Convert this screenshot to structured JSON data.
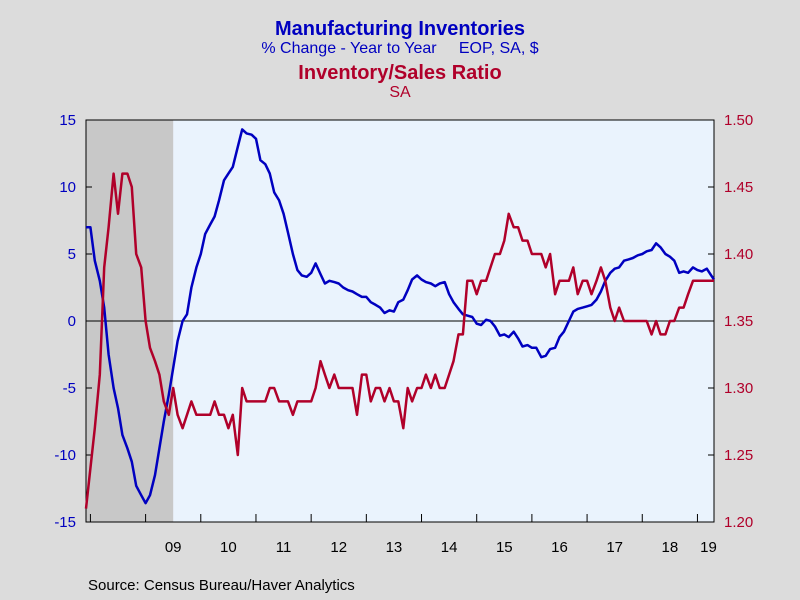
{
  "titles": {
    "line1": "Manufacturing Inventories",
    "line2": "% Change - Year to Year     EOP, SA, $",
    "line3": "Inventory/Sales Ratio",
    "line4": "SA"
  },
  "source": "Source:  Census Bureau/Haver Analytics",
  "colors": {
    "blue": "#0000c0",
    "red": "#b0002a",
    "plot_bg": "#eaf3fd",
    "recession": "#c8c8c8",
    "frame_bg": "#dcdcdc"
  },
  "chart_data": {
    "type": "line",
    "recession": {
      "start": 2007.92,
      "end": 2009.5
    },
    "x_range": [
      2007.92,
      2019.3
    ],
    "x_ticks": [
      {
        "label": "09",
        "x": 2009.5
      },
      {
        "label": "10",
        "x": 2010.5
      },
      {
        "label": "11",
        "x": 2011.5
      },
      {
        "label": "12",
        "x": 2012.5
      },
      {
        "label": "13",
        "x": 2013.5
      },
      {
        "label": "14",
        "x": 2014.5
      },
      {
        "label": "15",
        "x": 2015.5
      },
      {
        "label": "16",
        "x": 2016.5
      },
      {
        "label": "17",
        "x": 2017.5
      },
      {
        "label": "18",
        "x": 2018.5
      },
      {
        "label": "19",
        "x": 2019.2
      }
    ],
    "y_left": {
      "ylim": [
        -15,
        15
      ],
      "ticks": [
        15,
        10,
        5,
        0,
        -5,
        -10,
        -15
      ]
    },
    "y_right": {
      "ylim": [
        1.2,
        1.5
      ],
      "ticks": [
        "1.50",
        "1.45",
        "1.40",
        "1.35",
        "1.30",
        "1.25",
        "1.20"
      ]
    },
    "series": [
      {
        "name": "Manufacturing Inventories",
        "axis": "left",
        "points": [
          [
            2007.92,
            7.0
          ],
          [
            2008.0,
            7.0
          ],
          [
            2008.08,
            4.5
          ],
          [
            2008.17,
            3.0
          ],
          [
            2008.25,
            1.0
          ],
          [
            2008.33,
            -2.5
          ],
          [
            2008.42,
            -5.0
          ],
          [
            2008.5,
            -6.5
          ],
          [
            2008.58,
            -8.5
          ],
          [
            2008.67,
            -9.5
          ],
          [
            2008.75,
            -10.5
          ],
          [
            2008.83,
            -12.3
          ],
          [
            2008.92,
            -13.0
          ],
          [
            2009.0,
            -13.6
          ],
          [
            2009.08,
            -13.0
          ],
          [
            2009.17,
            -11.5
          ],
          [
            2009.25,
            -9.5
          ],
          [
            2009.33,
            -7.5
          ],
          [
            2009.42,
            -5.5
          ],
          [
            2009.5,
            -3.5
          ],
          [
            2009.58,
            -1.5
          ],
          [
            2009.67,
            0.0
          ],
          [
            2009.75,
            0.5
          ],
          [
            2009.83,
            2.5
          ],
          [
            2009.92,
            4.0
          ],
          [
            2010.0,
            5.0
          ],
          [
            2010.08,
            6.5
          ],
          [
            2010.17,
            7.2
          ],
          [
            2010.25,
            7.8
          ],
          [
            2010.33,
            9.0
          ],
          [
            2010.42,
            10.5
          ],
          [
            2010.5,
            11.0
          ],
          [
            2010.58,
            11.5
          ],
          [
            2010.67,
            13.0
          ],
          [
            2010.75,
            14.3
          ],
          [
            2010.83,
            14.0
          ],
          [
            2010.92,
            13.9
          ],
          [
            2011.0,
            13.6
          ],
          [
            2011.08,
            12.0
          ],
          [
            2011.17,
            11.7
          ],
          [
            2011.25,
            11.0
          ],
          [
            2011.33,
            9.6
          ],
          [
            2011.42,
            9.0
          ],
          [
            2011.5,
            8.0
          ],
          [
            2011.58,
            6.6
          ],
          [
            2011.67,
            5.0
          ],
          [
            2011.75,
            3.8
          ],
          [
            2011.83,
            3.4
          ],
          [
            2011.92,
            3.3
          ],
          [
            2012.0,
            3.6
          ],
          [
            2012.08,
            4.3
          ],
          [
            2012.17,
            3.5
          ],
          [
            2012.25,
            2.8
          ],
          [
            2012.33,
            3.0
          ],
          [
            2012.42,
            2.9
          ],
          [
            2012.5,
            2.8
          ],
          [
            2012.58,
            2.5
          ],
          [
            2012.67,
            2.3
          ],
          [
            2012.75,
            2.2
          ],
          [
            2012.83,
            2.0
          ],
          [
            2012.92,
            1.8
          ],
          [
            2013.0,
            1.8
          ],
          [
            2013.08,
            1.4
          ],
          [
            2013.17,
            1.2
          ],
          [
            2013.25,
            1.0
          ],
          [
            2013.33,
            0.6
          ],
          [
            2013.42,
            0.8
          ],
          [
            2013.5,
            0.7
          ],
          [
            2013.58,
            1.4
          ],
          [
            2013.67,
            1.6
          ],
          [
            2013.75,
            2.3
          ],
          [
            2013.83,
            3.1
          ],
          [
            2013.92,
            3.4
          ],
          [
            2014.0,
            3.1
          ],
          [
            2014.08,
            2.9
          ],
          [
            2014.17,
            2.8
          ],
          [
            2014.25,
            2.6
          ],
          [
            2014.33,
            2.8
          ],
          [
            2014.42,
            2.9
          ],
          [
            2014.5,
            2.0
          ],
          [
            2014.58,
            1.4
          ],
          [
            2014.67,
            0.9
          ],
          [
            2014.75,
            0.5
          ],
          [
            2014.83,
            0.4
          ],
          [
            2014.92,
            0.3
          ],
          [
            2015.0,
            -0.2
          ],
          [
            2015.08,
            -0.3
          ],
          [
            2015.17,
            0.1
          ],
          [
            2015.25,
            0.0
          ],
          [
            2015.33,
            -0.4
          ],
          [
            2015.42,
            -1.1
          ],
          [
            2015.5,
            -1.0
          ],
          [
            2015.58,
            -1.2
          ],
          [
            2015.67,
            -0.8
          ],
          [
            2015.75,
            -1.3
          ],
          [
            2015.83,
            -1.9
          ],
          [
            2015.92,
            -1.8
          ],
          [
            2016.0,
            -2.0
          ],
          [
            2016.08,
            -2.0
          ],
          [
            2016.17,
            -2.7
          ],
          [
            2016.25,
            -2.6
          ],
          [
            2016.33,
            -2.1
          ],
          [
            2016.42,
            -2.0
          ],
          [
            2016.5,
            -1.2
          ],
          [
            2016.58,
            -0.8
          ],
          [
            2016.67,
            0.0
          ],
          [
            2016.75,
            0.7
          ],
          [
            2016.83,
            0.9
          ],
          [
            2016.92,
            1.0
          ],
          [
            2017.0,
            1.1
          ],
          [
            2017.08,
            1.2
          ],
          [
            2017.17,
            1.6
          ],
          [
            2017.25,
            2.2
          ],
          [
            2017.33,
            3.0
          ],
          [
            2017.42,
            3.6
          ],
          [
            2017.5,
            3.9
          ],
          [
            2017.58,
            4.0
          ],
          [
            2017.67,
            4.5
          ],
          [
            2017.75,
            4.6
          ],
          [
            2017.83,
            4.7
          ],
          [
            2017.92,
            4.9
          ],
          [
            2018.0,
            5.0
          ],
          [
            2018.08,
            5.2
          ],
          [
            2018.17,
            5.3
          ],
          [
            2018.25,
            5.8
          ],
          [
            2018.33,
            5.5
          ],
          [
            2018.42,
            5.0
          ],
          [
            2018.5,
            4.8
          ],
          [
            2018.58,
            4.5
          ],
          [
            2018.67,
            3.6
          ],
          [
            2018.75,
            3.7
          ],
          [
            2018.83,
            3.6
          ],
          [
            2018.92,
            4.0
          ],
          [
            2019.0,
            3.8
          ],
          [
            2019.08,
            3.7
          ],
          [
            2019.17,
            3.9
          ],
          [
            2019.25,
            3.4
          ],
          [
            2019.3,
            3.1
          ]
        ]
      },
      {
        "name": "Inventory/Sales Ratio",
        "axis": "right",
        "points": [
          [
            2007.92,
            1.21
          ],
          [
            2008.0,
            1.24
          ],
          [
            2008.08,
            1.27
          ],
          [
            2008.17,
            1.31
          ],
          [
            2008.25,
            1.39
          ],
          [
            2008.33,
            1.42
          ],
          [
            2008.42,
            1.46
          ],
          [
            2008.5,
            1.43
          ],
          [
            2008.58,
            1.46
          ],
          [
            2008.67,
            1.46
          ],
          [
            2008.75,
            1.45
          ],
          [
            2008.83,
            1.4
          ],
          [
            2008.92,
            1.39
          ],
          [
            2009.0,
            1.35
          ],
          [
            2009.08,
            1.33
          ],
          [
            2009.17,
            1.32
          ],
          [
            2009.25,
            1.31
          ],
          [
            2009.33,
            1.29
          ],
          [
            2009.42,
            1.28
          ],
          [
            2009.5,
            1.3
          ],
          [
            2009.58,
            1.28
          ],
          [
            2009.67,
            1.27
          ],
          [
            2009.75,
            1.28
          ],
          [
            2009.83,
            1.29
          ],
          [
            2009.92,
            1.28
          ],
          [
            2010.0,
            1.28
          ],
          [
            2010.08,
            1.28
          ],
          [
            2010.17,
            1.28
          ],
          [
            2010.25,
            1.29
          ],
          [
            2010.33,
            1.28
          ],
          [
            2010.42,
            1.28
          ],
          [
            2010.5,
            1.27
          ],
          [
            2010.58,
            1.28
          ],
          [
            2010.67,
            1.25
          ],
          [
            2010.75,
            1.3
          ],
          [
            2010.83,
            1.29
          ],
          [
            2010.92,
            1.29
          ],
          [
            2011.0,
            1.29
          ],
          [
            2011.08,
            1.29
          ],
          [
            2011.17,
            1.29
          ],
          [
            2011.25,
            1.3
          ],
          [
            2011.33,
            1.3
          ],
          [
            2011.42,
            1.29
          ],
          [
            2011.5,
            1.29
          ],
          [
            2011.58,
            1.29
          ],
          [
            2011.67,
            1.28
          ],
          [
            2011.75,
            1.29
          ],
          [
            2011.83,
            1.29
          ],
          [
            2011.92,
            1.29
          ],
          [
            2012.0,
            1.29
          ],
          [
            2012.08,
            1.3
          ],
          [
            2012.17,
            1.32
          ],
          [
            2012.25,
            1.31
          ],
          [
            2012.33,
            1.3
          ],
          [
            2012.42,
            1.31
          ],
          [
            2012.5,
            1.3
          ],
          [
            2012.58,
            1.3
          ],
          [
            2012.67,
            1.3
          ],
          [
            2012.75,
            1.3
          ],
          [
            2012.83,
            1.28
          ],
          [
            2012.92,
            1.31
          ],
          [
            2013.0,
            1.31
          ],
          [
            2013.08,
            1.29
          ],
          [
            2013.17,
            1.3
          ],
          [
            2013.25,
            1.3
          ],
          [
            2013.33,
            1.29
          ],
          [
            2013.42,
            1.3
          ],
          [
            2013.5,
            1.29
          ],
          [
            2013.58,
            1.29
          ],
          [
            2013.67,
            1.27
          ],
          [
            2013.75,
            1.3
          ],
          [
            2013.83,
            1.29
          ],
          [
            2013.92,
            1.3
          ],
          [
            2014.0,
            1.3
          ],
          [
            2014.08,
            1.31
          ],
          [
            2014.17,
            1.3
          ],
          [
            2014.25,
            1.31
          ],
          [
            2014.33,
            1.3
          ],
          [
            2014.42,
            1.3
          ],
          [
            2014.5,
            1.31
          ],
          [
            2014.58,
            1.32
          ],
          [
            2014.67,
            1.34
          ],
          [
            2014.75,
            1.34
          ],
          [
            2014.83,
            1.38
          ],
          [
            2014.92,
            1.38
          ],
          [
            2015.0,
            1.37
          ],
          [
            2015.08,
            1.38
          ],
          [
            2015.17,
            1.38
          ],
          [
            2015.25,
            1.39
          ],
          [
            2015.33,
            1.4
          ],
          [
            2015.42,
            1.4
          ],
          [
            2015.5,
            1.41
          ],
          [
            2015.58,
            1.43
          ],
          [
            2015.67,
            1.42
          ],
          [
            2015.75,
            1.42
          ],
          [
            2015.83,
            1.41
          ],
          [
            2015.92,
            1.41
          ],
          [
            2016.0,
            1.4
          ],
          [
            2016.08,
            1.4
          ],
          [
            2016.17,
            1.4
          ],
          [
            2016.25,
            1.39
          ],
          [
            2016.33,
            1.4
          ],
          [
            2016.42,
            1.37
          ],
          [
            2016.5,
            1.38
          ],
          [
            2016.58,
            1.38
          ],
          [
            2016.67,
            1.38
          ],
          [
            2016.75,
            1.39
          ],
          [
            2016.83,
            1.37
          ],
          [
            2016.92,
            1.38
          ],
          [
            2017.0,
            1.38
          ],
          [
            2017.08,
            1.37
          ],
          [
            2017.17,
            1.38
          ],
          [
            2017.25,
            1.39
          ],
          [
            2017.33,
            1.38
          ],
          [
            2017.42,
            1.36
          ],
          [
            2017.5,
            1.35
          ],
          [
            2017.58,
            1.36
          ],
          [
            2017.67,
            1.35
          ],
          [
            2017.75,
            1.35
          ],
          [
            2017.83,
            1.35
          ],
          [
            2017.92,
            1.35
          ],
          [
            2018.0,
            1.35
          ],
          [
            2018.08,
            1.35
          ],
          [
            2018.17,
            1.34
          ],
          [
            2018.25,
            1.35
          ],
          [
            2018.33,
            1.34
          ],
          [
            2018.42,
            1.34
          ],
          [
            2018.5,
            1.35
          ],
          [
            2018.58,
            1.35
          ],
          [
            2018.67,
            1.36
          ],
          [
            2018.75,
            1.36
          ],
          [
            2018.83,
            1.37
          ],
          [
            2018.92,
            1.38
          ],
          [
            2019.0,
            1.38
          ],
          [
            2019.08,
            1.38
          ],
          [
            2019.17,
            1.38
          ],
          [
            2019.3,
            1.38
          ]
        ]
      }
    ]
  }
}
